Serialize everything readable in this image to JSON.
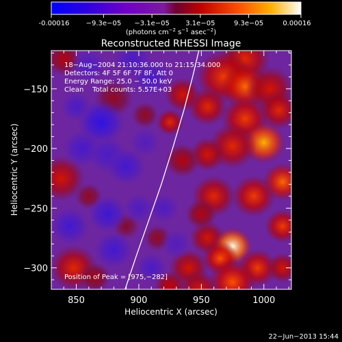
{
  "chart_data": {
    "type": "heatmap",
    "title": "Reconstructed RHESSI Image",
    "xlabel": "Heliocentric X (arcsec)",
    "ylabel": "Heliocentric Y (arcsec)",
    "xlim": [
      830,
      1022
    ],
    "ylim": [
      -318,
      -118
    ],
    "x_ticks": [
      850,
      900,
      950,
      1000
    ],
    "y_ticks": [
      -150,
      -200,
      -250,
      -300
    ],
    "colorbar": {
      "min": -0.00016,
      "max": 0.00016,
      "ticks": [
        {
          "value": -0.00016,
          "label": "-0.00016"
        },
        {
          "value": -9.3e-05,
          "label": "−9.3e−05"
        },
        {
          "value": -3.1e-05,
          "label": "−3.1e−05"
        },
        {
          "value": 3.1e-05,
          "label": "3.1e−05"
        },
        {
          "value": 9.3e-05,
          "label": "9.3e−05"
        },
        {
          "value": 0.00016,
          "label": "0.00016"
        }
      ],
      "units": {
        "a": "(photons cm",
        "b": "s",
        "c": "asec",
        "d": ")",
        "e1": "−2",
        "e2": "−1",
        "e3": "−2"
      }
    },
    "annotations": [
      "18−Aug−2004 21:10:36.000 to 21:15:34.000",
      "Detectors: 4F 5F 6F 7F 8F, Att 0",
      "Energy Range: 25.0 − 50.0 keV",
      "Clean    Total counts: 5.57E+03"
    ],
    "peak_label": "Position of Peak = [975,−282]",
    "peak": [
      975,
      -282
    ],
    "limb": [
      [
        889,
        -318
      ],
      [
        898,
        -290
      ],
      [
        908,
        -260
      ],
      [
        918,
        -230
      ],
      [
        927,
        -200
      ],
      [
        936,
        -168
      ],
      [
        943,
        -140
      ],
      [
        948,
        -118
      ]
    ],
    "blobs": [
      [
        985,
        -125,
        13,
        0.55
      ],
      [
        968,
        -140,
        14,
        0.6
      ],
      [
        985,
        -148,
        12,
        0.7
      ],
      [
        1005,
        -150,
        12,
        0.5
      ],
      [
        1012,
        -168,
        10,
        0.55
      ],
      [
        985,
        -175,
        12,
        0.6
      ],
      [
        955,
        -165,
        10,
        0.55
      ],
      [
        1000,
        -195,
        11,
        0.85
      ],
      [
        975,
        -198,
        12,
        0.55
      ],
      [
        955,
        -205,
        9,
        0.5
      ],
      [
        935,
        -210,
        9,
        0.4
      ],
      [
        1015,
        -228,
        10,
        0.7
      ],
      [
        960,
        -240,
        11,
        0.55
      ],
      [
        992,
        -240,
        11,
        0.6
      ],
      [
        1015,
        -265,
        9,
        0.6
      ],
      [
        955,
        -275,
        9,
        0.5
      ],
      [
        975,
        -282,
        10,
        1.0
      ],
      [
        965,
        -292,
        9,
        0.65
      ],
      [
        995,
        -300,
        10,
        0.6
      ],
      [
        975,
        -312,
        12,
        0.65
      ],
      [
        940,
        -300,
        10,
        0.5
      ],
      [
        950,
        -255,
        8,
        0.4
      ],
      [
        925,
        -178,
        7,
        0.55
      ],
      [
        935,
        -155,
        9,
        0.5
      ],
      [
        1015,
        -300,
        8,
        0.5
      ],
      [
        948,
        -318,
        10,
        0.5
      ],
      [
        925,
        -315,
        8,
        0.45
      ],
      [
        915,
        -275,
        7,
        0.3
      ],
      [
        838,
        -225,
        12,
        0.5
      ],
      [
        848,
        -300,
        12,
        0.55
      ],
      [
        840,
        -125,
        9,
        0.4
      ],
      [
        880,
        -158,
        10,
        0.3
      ],
      [
        865,
        -308,
        8,
        0.35
      ],
      [
        890,
        -265,
        7,
        0.25
      ],
      [
        905,
        -172,
        7,
        0.3
      ],
      [
        860,
        -240,
        7,
        0.3
      ],
      [
        870,
        -178,
        12,
        -0.7
      ],
      [
        855,
        -200,
        10,
        -0.45
      ],
      [
        875,
        -205,
        10,
        -0.4
      ],
      [
        890,
        -215,
        10,
        -0.5
      ],
      [
        850,
        -165,
        8,
        -0.4
      ],
      [
        845,
        -265,
        10,
        -0.5
      ],
      [
        875,
        -255,
        10,
        -0.55
      ],
      [
        900,
        -250,
        8,
        -0.35
      ],
      [
        880,
        -285,
        10,
        -0.5
      ],
      [
        910,
        -300,
        8,
        -0.4
      ],
      [
        910,
        -140,
        10,
        -0.4
      ],
      [
        895,
        -125,
        10,
        -0.4
      ],
      [
        920,
        -250,
        8,
        -0.35
      ],
      [
        860,
        -130,
        9,
        -0.35
      ],
      [
        905,
        -195,
        8,
        -0.3
      ],
      [
        930,
        -280,
        8,
        -0.3
      ]
    ]
  },
  "timestamp": "22−Jun−2013 15:44"
}
